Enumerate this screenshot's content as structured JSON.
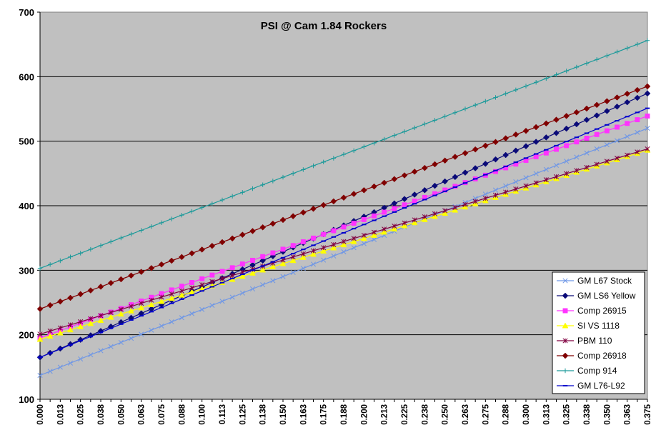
{
  "chart_data": {
    "type": "line",
    "title": "PSI @ Cam 1.84 Rockers",
    "xlabel": "",
    "ylabel": "",
    "ylim": [
      100,
      700
    ],
    "yticks": [
      100,
      200,
      300,
      400,
      500,
      600,
      700
    ],
    "xlim": [
      0,
      0.375
    ],
    "x_start": 0,
    "x_end": 0.375,
    "x_step": 0.00625,
    "x_tick_labels": [
      "0.000",
      "0.013",
      "0.025",
      "0.038",
      "0.050",
      "0.063",
      "0.075",
      "0.088",
      "0.100",
      "0.113",
      "0.125",
      "0.138",
      "0.150",
      "0.163",
      "0.175",
      "0.188",
      "0.200",
      "0.213",
      "0.225",
      "0.238",
      "0.250",
      "0.263",
      "0.275",
      "0.288",
      "0.300",
      "0.313",
      "0.325",
      "0.338",
      "0.350",
      "0.363",
      "0.375"
    ],
    "grid": "horizontal",
    "plot_background": "#c0c0c0",
    "legend_position": "bottom-right",
    "series": [
      {
        "name": "GM L67 Stock",
        "start": 137,
        "end": 520,
        "color": "#6e96e6",
        "marker": "x"
      },
      {
        "name": "GM LS6 Yellow",
        "start": 165,
        "end": 574,
        "color": "#0a0a78",
        "marker": "diamond"
      },
      {
        "name": "Comp 26915",
        "start": 195,
        "end": 539,
        "color": "#ff33ff",
        "marker": "square"
      },
      {
        "name": "SI VS 1118",
        "start": 193,
        "end": 486,
        "color": "#ffff00",
        "marker": "triangle"
      },
      {
        "name": "PBM 110",
        "start": 201,
        "end": 488,
        "color": "#800040",
        "marker": "star"
      },
      {
        "name": "Comp 26918",
        "start": 240,
        "end": 585,
        "color": "#800000",
        "marker": "diamond"
      },
      {
        "name": "Comp 914",
        "start": 303,
        "end": 656,
        "color": "#1c9a9a",
        "marker": "plus"
      },
      {
        "name": "GM L76-L92",
        "start": 165,
        "end": 551,
        "color": "#0000cc",
        "marker": "dash"
      }
    ]
  }
}
